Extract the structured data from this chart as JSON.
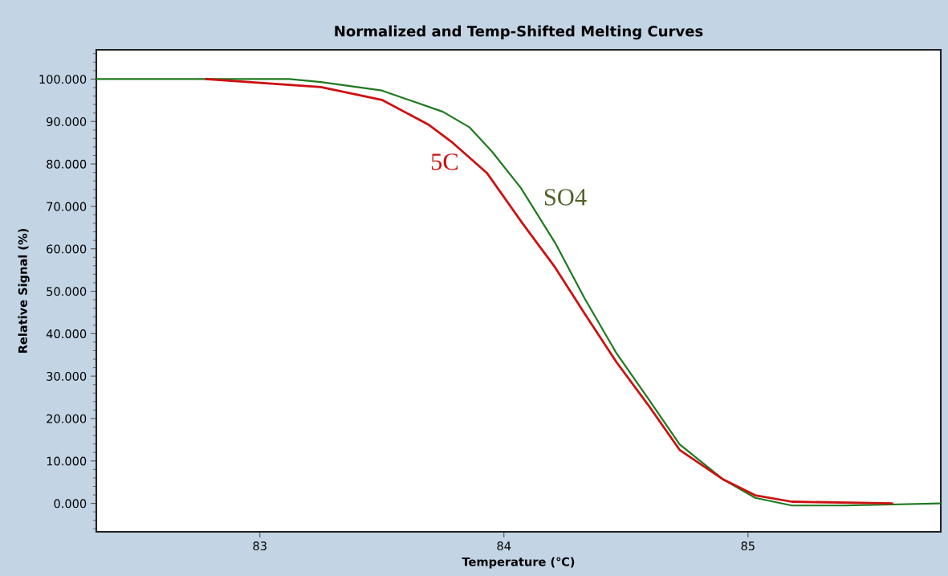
{
  "chart_data": {
    "type": "line",
    "title": "Normalized and Temp-Shifted Melting Curves",
    "xlabel": "Temperature (℃)",
    "ylabel": "Relative Signal (%)",
    "xlim": [
      82.33,
      85.79
    ],
    "xticks": [
      83,
      84,
      85
    ],
    "ylim": [
      -6.7,
      106.9
    ],
    "yticks": [
      {
        "value": 0,
        "label": "0.000"
      },
      {
        "value": 10,
        "label": "10.000"
      },
      {
        "value": 20,
        "label": "20.000"
      },
      {
        "value": 30,
        "label": "30.000"
      },
      {
        "value": 40,
        "label": "40.000"
      },
      {
        "value": 50,
        "label": "50.000"
      },
      {
        "value": 60,
        "label": "60.000"
      },
      {
        "value": 70,
        "label": "70.000"
      },
      {
        "value": 80,
        "label": "80.000"
      },
      {
        "value": 90,
        "label": "90.000"
      },
      {
        "value": 100,
        "label": "100.000"
      }
    ],
    "grid": false,
    "legend": false,
    "marker": "none",
    "line_style": "solid",
    "series": [
      {
        "name": "5C",
        "color": "#cc1111",
        "x": [
          82.78,
          83.25,
          83.5,
          83.69,
          83.79,
          83.93,
          84.08,
          84.21,
          84.33,
          84.46,
          84.59,
          84.72,
          84.9,
          85.03,
          85.18,
          85.59
        ],
        "values": [
          100,
          98.1,
          95.1,
          89.3,
          85,
          77.9,
          65.7,
          55.6,
          44.8,
          33.4,
          23.3,
          12.6,
          5.6,
          1.9,
          0.4,
          0
        ]
      },
      {
        "name": "SO4",
        "color": "#1e7a1e",
        "x": [
          82.33,
          83.12,
          83.25,
          83.5,
          83.75,
          83.86,
          83.95,
          84.07,
          84.21,
          84.33,
          84.46,
          84.59,
          84.72,
          84.9,
          85.03,
          85.18,
          85.4,
          85.79
        ],
        "values": [
          100,
          100,
          99.3,
          97.3,
          92.3,
          88.6,
          83,
          74.3,
          61.4,
          48.4,
          35.5,
          24.8,
          13.9,
          5.6,
          1.3,
          -0.5,
          -0.5,
          0
        ]
      }
    ]
  }
}
